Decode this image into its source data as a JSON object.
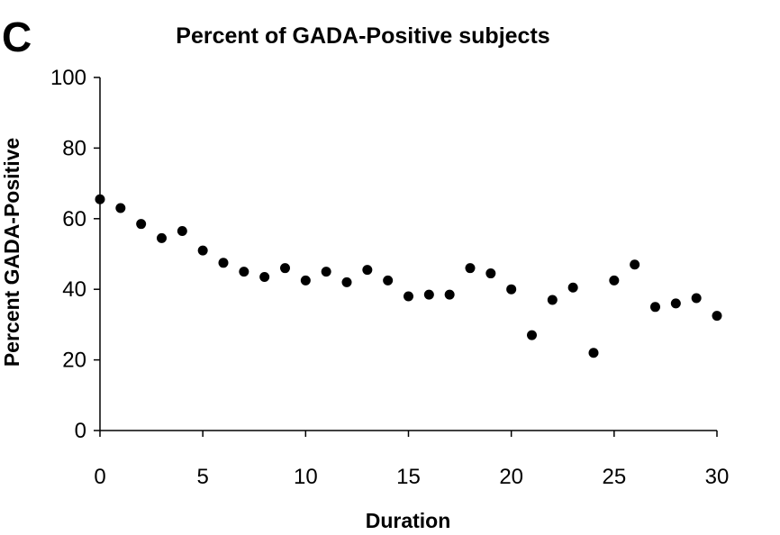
{
  "panel_letter": "C",
  "chart_data": {
    "type": "scatter",
    "title": "Percent of GADA-Positive subjects",
    "xlabel": "Duration",
    "ylabel": "Percent GADA-Positive",
    "xlim": [
      0,
      30
    ],
    "ylim": [
      0,
      100
    ],
    "xticks": [
      0,
      5,
      10,
      15,
      20,
      25,
      30
    ],
    "yticks": [
      0,
      20,
      40,
      60,
      80,
      100
    ],
    "grid": false,
    "legend": "none",
    "marker_color": "#000000",
    "points": [
      {
        "x": 0,
        "y": 65.5
      },
      {
        "x": 1,
        "y": 63
      },
      {
        "x": 2,
        "y": 58.5
      },
      {
        "x": 3,
        "y": 54.5
      },
      {
        "x": 4,
        "y": 56.5
      },
      {
        "x": 5,
        "y": 51
      },
      {
        "x": 6,
        "y": 47.5
      },
      {
        "x": 7,
        "y": 45
      },
      {
        "x": 8,
        "y": 43.5
      },
      {
        "x": 9,
        "y": 46
      },
      {
        "x": 10,
        "y": 42.5
      },
      {
        "x": 11,
        "y": 45
      },
      {
        "x": 12,
        "y": 42
      },
      {
        "x": 13,
        "y": 45.5
      },
      {
        "x": 14,
        "y": 42.5
      },
      {
        "x": 15,
        "y": 38
      },
      {
        "x": 16,
        "y": 38.5
      },
      {
        "x": 17,
        "y": 38.5
      },
      {
        "x": 18,
        "y": 46
      },
      {
        "x": 19,
        "y": 44.5
      },
      {
        "x": 20,
        "y": 40
      },
      {
        "x": 21,
        "y": 27
      },
      {
        "x": 22,
        "y": 37
      },
      {
        "x": 23,
        "y": 40.5
      },
      {
        "x": 24,
        "y": 22
      },
      {
        "x": 25,
        "y": 42.5
      },
      {
        "x": 26,
        "y": 47
      },
      {
        "x": 27,
        "y": 35
      },
      {
        "x": 28,
        "y": 36
      },
      {
        "x": 29,
        "y": 37.5
      },
      {
        "x": 30,
        "y": 32.5
      }
    ]
  }
}
